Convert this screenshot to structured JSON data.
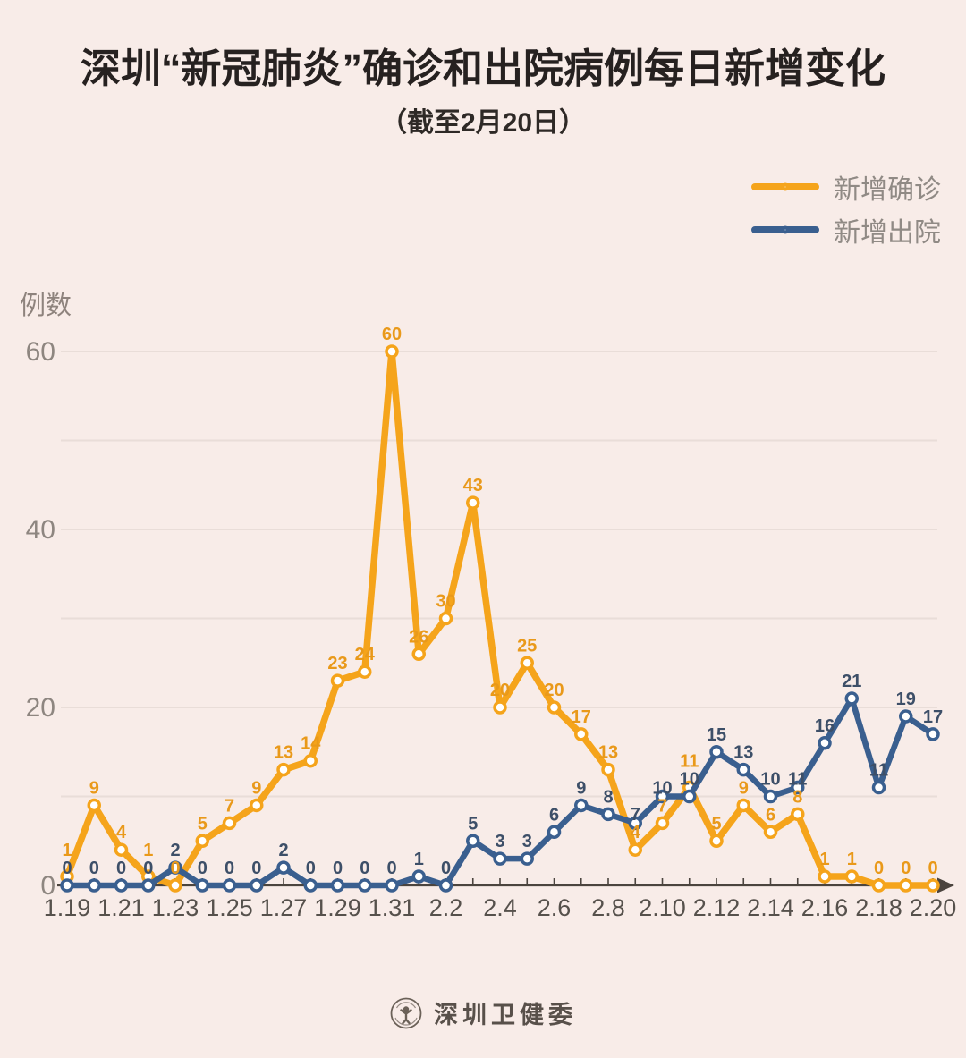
{
  "page": {
    "background_color": "#F8ECE8"
  },
  "header": {
    "title": "深圳“新冠肺炎”确诊和出院病例每日新增变化",
    "subtitle": "（截至2月20日）"
  },
  "legend": {
    "items": [
      {
        "id": "confirmed",
        "label": "新增确诊",
        "color": "#F5A41B"
      },
      {
        "id": "discharged",
        "label": "新增出院",
        "color": "#3A5F8F"
      }
    ]
  },
  "chart_data": {
    "type": "line",
    "title": "深圳“新冠肺炎”确诊和出院病例每日新增变化",
    "subtitle": "（截至2月20日）",
    "x": [
      "1.19",
      "1.20",
      "1.21",
      "1.22",
      "1.23",
      "1.24",
      "1.25",
      "1.26",
      "1.27",
      "1.28",
      "1.29",
      "1.30",
      "1.31",
      "2.1",
      "2.2",
      "2.3",
      "2.4",
      "2.5",
      "2.6",
      "2.7",
      "2.8",
      "2.9",
      "2.10",
      "2.11",
      "2.12",
      "2.13",
      "2.14",
      "2.15",
      "2.16",
      "2.17",
      "2.18",
      "2.19",
      "2.20"
    ],
    "x_tick_label_every": 2,
    "series": [
      {
        "name": "新增确诊",
        "color": "#F5A41B",
        "label_color": "#E9991A",
        "values": [
          1,
          9,
          4,
          1,
          0,
          5,
          7,
          9,
          13,
          14,
          23,
          24,
          60,
          26,
          30,
          43,
          20,
          25,
          20,
          17,
          13,
          4,
          7,
          11,
          5,
          9,
          6,
          8,
          1,
          1,
          0,
          0,
          0
        ]
      },
      {
        "name": "新增出院",
        "color": "#3A5F8F",
        "label_color": "#3D4F68",
        "values": [
          0,
          0,
          0,
          0,
          2,
          0,
          0,
          0,
          2,
          0,
          0,
          0,
          0,
          1,
          0,
          5,
          3,
          3,
          6,
          9,
          8,
          7,
          10,
          10,
          15,
          13,
          10,
          11,
          16,
          21,
          11,
          19,
          17
        ]
      }
    ],
    "ylabel": "例数",
    "ylim": [
      0,
      62
    ],
    "y_labeled_ticks": [
      0,
      20,
      40,
      60
    ],
    "y_gridline_step": 10,
    "grid": true,
    "point_labels": true,
    "legend_position": "top-right",
    "colors": {
      "gridline": "#E9DDD8",
      "axis": "#4B443E",
      "x_tick_label": "#56514C",
      "y_tick_label": "#8E8680"
    }
  },
  "footer": {
    "org_name": "深圳卫健委"
  }
}
